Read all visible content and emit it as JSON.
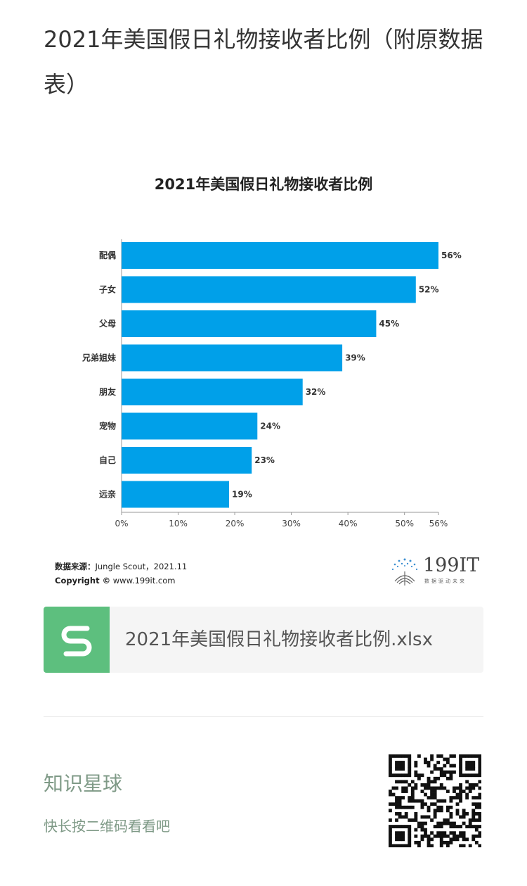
{
  "page": {
    "title": "2021年美国假日礼物接收者比例（附原数据表）"
  },
  "chart_data": {
    "type": "bar",
    "orientation": "horizontal",
    "title": "2021年美国假日礼物接收者比例",
    "categories": [
      "配偶",
      "子女",
      "父母",
      "兄弟姐妹",
      "朋友",
      "宠物",
      "自己",
      "远亲"
    ],
    "values": [
      56,
      52,
      45,
      39,
      32,
      24,
      23,
      19
    ],
    "value_labels": [
      "56%",
      "52%",
      "45%",
      "39%",
      "32%",
      "24%",
      "23%",
      "19%"
    ],
    "xlim": [
      0,
      56
    ],
    "x_ticks": [
      0,
      10,
      20,
      30,
      40,
      50,
      56
    ],
    "x_tick_labels": [
      "0%",
      "10%",
      "20%",
      "30%",
      "40%",
      "50%",
      "56%"
    ],
    "bar_color": "#00a0e9",
    "grid": false
  },
  "source": {
    "label": "数据来源：",
    "text": "Jungle Scout，2021.11",
    "copyright_label": "Copyright ©",
    "copyright_text": "www.199it.com"
  },
  "brand": {
    "name": "199IT",
    "slogan": "数据驱动未来"
  },
  "file": {
    "icon": "spreadsheet-s-icon",
    "name": "2021年美国假日礼物接收者比例.xlsx",
    "icon_color": "#5dbf7e"
  },
  "promo": {
    "title": "知识星球",
    "subtitle": "快长按二维码看看吧",
    "color": "#7f9a87"
  }
}
